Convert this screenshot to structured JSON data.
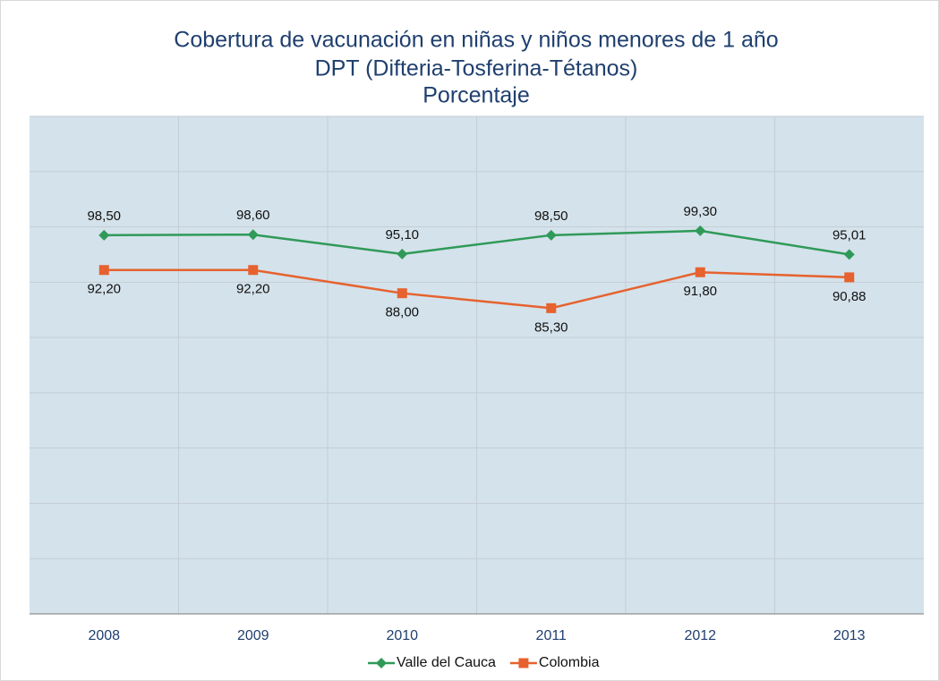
{
  "chart_data": {
    "type": "line",
    "title": [
      "Cobertura de vacunación en niñas y niños menores de 1 año",
      "DPT (Difteria-Tosferina-Tétanos)",
      "Porcentaje"
    ],
    "categories": [
      "2008",
      "2009",
      "2010",
      "2011",
      "2012",
      "2013"
    ],
    "series": [
      {
        "name": "Valle del Cauca",
        "color": "#2f9a58",
        "marker": "diamond",
        "values": [
          98.5,
          98.6,
          95.1,
          98.5,
          99.3,
          95.01
        ],
        "value_labels": [
          "98,50",
          "98,60",
          "95,10",
          "98,50",
          "99,30",
          "95,01"
        ]
      },
      {
        "name": "Colombia",
        "color": "#e6622e",
        "marker": "square",
        "values": [
          92.2,
          92.2,
          88.0,
          85.3,
          91.8,
          90.88
        ],
        "value_labels": [
          "92,20",
          "92,20",
          "88,00",
          "85,30",
          "91,80",
          "90,88"
        ]
      }
    ],
    "ylim": [
      30,
      120
    ],
    "yticks": [
      30,
      40,
      50,
      60,
      70,
      80,
      90,
      100,
      110,
      120
    ],
    "grid": true,
    "legend": "bottom"
  }
}
